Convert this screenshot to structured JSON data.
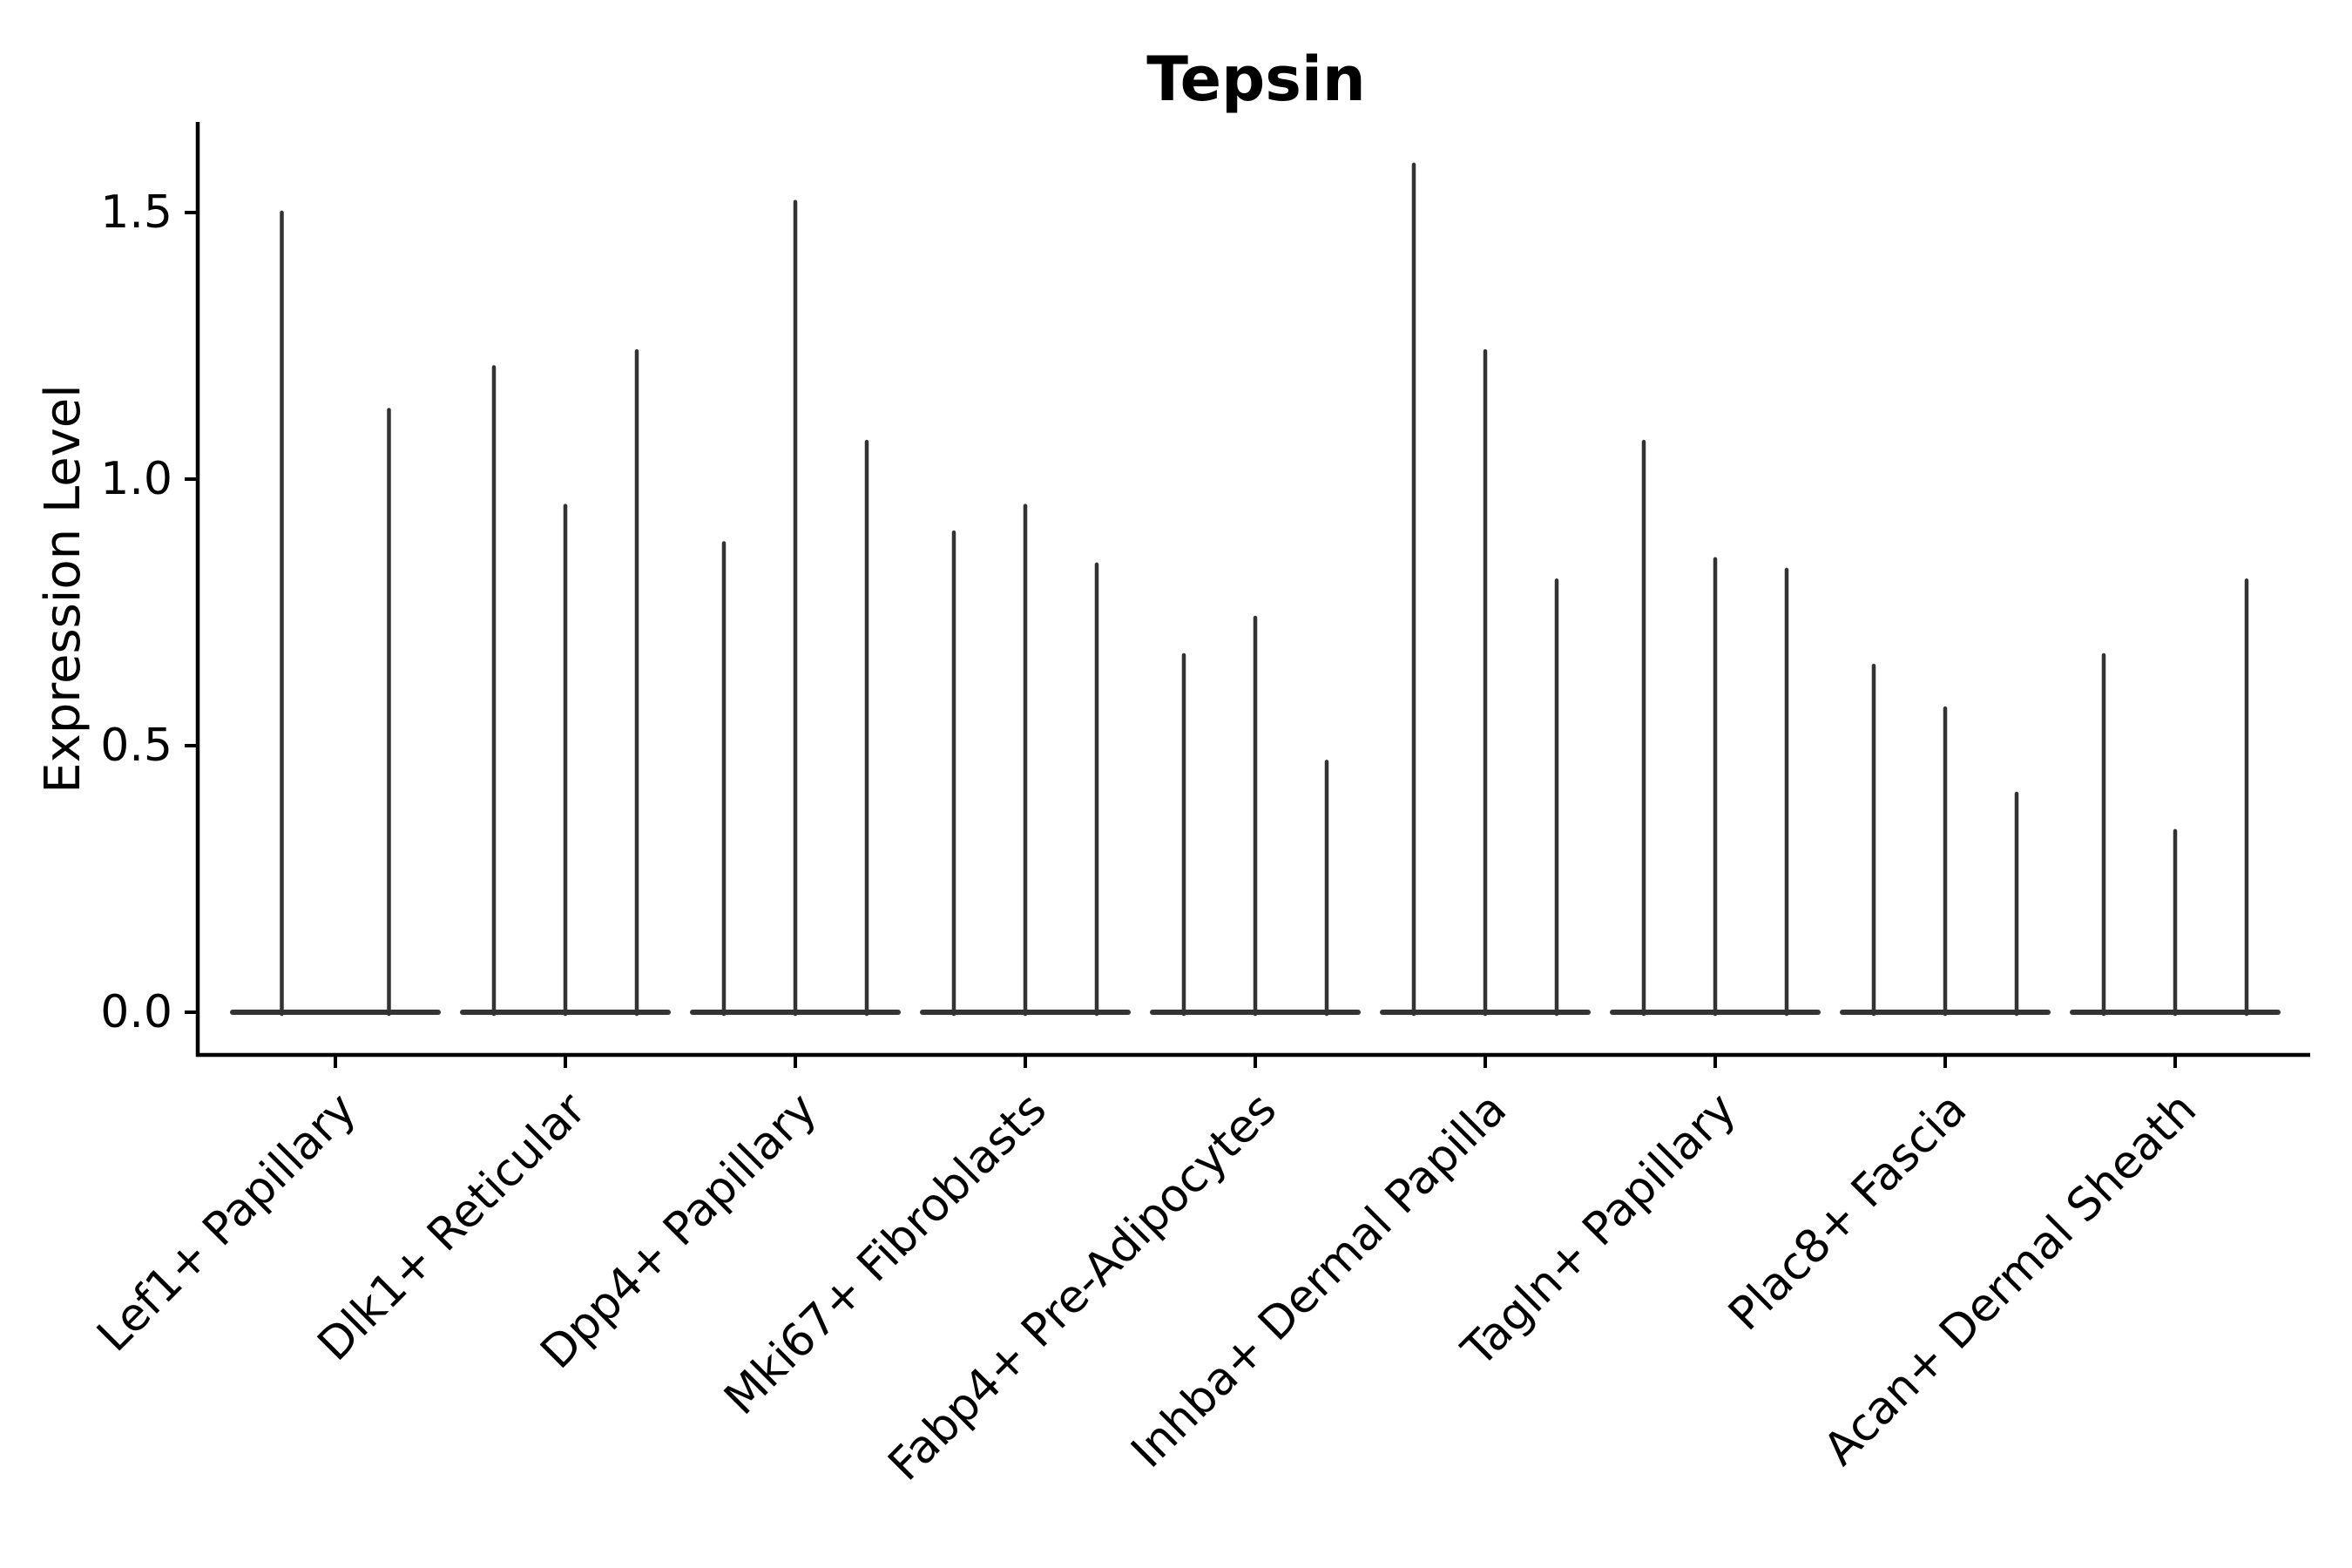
{
  "figure": {
    "title": "Tepsin",
    "ylabel": "Expression Level"
  },
  "chart_data": {
    "type": "violin",
    "title": "Tepsin",
    "xlabel": "",
    "ylabel": "Expression Level",
    "ylim": [
      -0.08,
      1.67
    ],
    "yticks": [
      0.0,
      0.5,
      1.0,
      1.5
    ],
    "ytick_labels": [
      "0.0",
      "0.5",
      "1.0",
      "1.5"
    ],
    "grid": false,
    "legend": "none",
    "categories": [
      "Lef1+ Papillary",
      "Dlk1+ Reticular",
      "Dpp4+ Papillary",
      "Mki67+ Fibroblasts",
      "Fabp4+ Pre-Adipocytes",
      "Inhba+ Dermal Papilla",
      "Tagln+ Papillary",
      "Plac8+ Fascia",
      "Acan+ Dermal Sheath"
    ],
    "groups": [
      {
        "category": "Lef1+ Papillary",
        "spike_max_values": [
          1.5,
          1.13
        ]
      },
      {
        "category": "Dlk1+ Reticular",
        "spike_max_values": [
          1.21,
          0.95,
          1.24
        ]
      },
      {
        "category": "Dpp4+ Papillary",
        "spike_max_values": [
          0.88,
          1.52,
          1.07
        ]
      },
      {
        "category": "Mki67+ Fibroblasts",
        "spike_max_values": [
          0.9,
          0.95,
          0.84
        ]
      },
      {
        "category": "Fabp4+ Pre-Adipocytes",
        "spike_max_values": [
          0.67,
          0.74,
          0.47
        ]
      },
      {
        "category": "Inhba+ Dermal Papilla",
        "spike_max_values": [
          1.59,
          1.24,
          0.81
        ]
      },
      {
        "category": "Tagln+ Papillary",
        "spike_max_values": [
          1.07,
          0.85,
          0.83
        ]
      },
      {
        "category": "Plac8+ Fascia",
        "spike_max_values": [
          0.65,
          0.57,
          0.41
        ]
      },
      {
        "category": "Acan+ Dermal Sheath",
        "spike_max_values": [
          0.67,
          0.34,
          0.81
        ]
      }
    ],
    "style": {
      "violin_color": "#333333",
      "axis_color": "#000000",
      "text_color": "#000000",
      "background": "#ffffff",
      "shape_note": "each violin collapses to a flat baseline bar at 0 with one thin density spike reaching its max value"
    }
  }
}
